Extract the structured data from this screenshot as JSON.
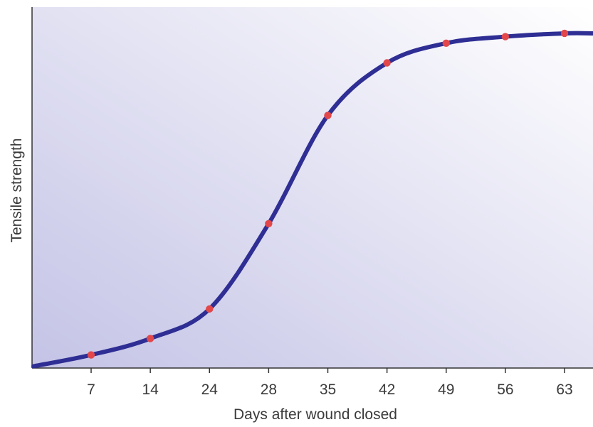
{
  "chart_data": {
    "type": "line",
    "xlabel": "Days after wound closed",
    "ylabel": "Tensile strength",
    "categories": [
      "7",
      "14",
      "24",
      "28",
      "35",
      "42",
      "49",
      "56",
      "63"
    ],
    "series": [
      {
        "values": [
          0.04,
          0.09,
          0.18,
          0.44,
          0.77,
          0.93,
          0.99,
          1.01,
          1.02
        ]
      }
    ],
    "ylim": [
      0,
      1.1
    ],
    "y_ticks_shown": false,
    "grid": false,
    "legend": "none",
    "colors": {
      "line": "#2e2e94",
      "marker": "#e2474a",
      "background_start": "#c4c3e6",
      "background_end": "#ffffff",
      "axis": "#333333"
    }
  }
}
